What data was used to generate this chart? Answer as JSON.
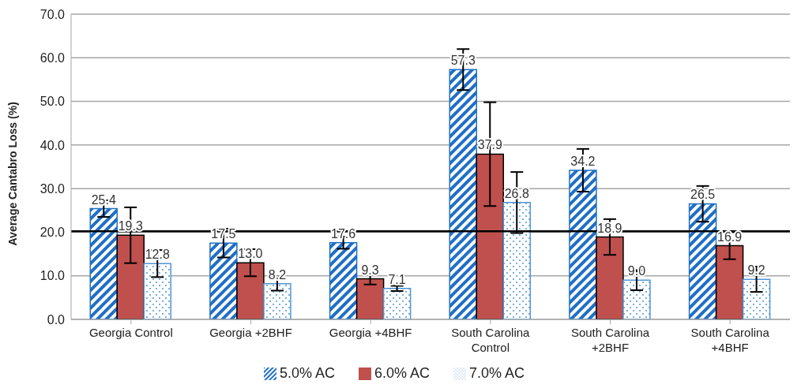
{
  "chart_data": {
    "type": "bar",
    "ylabel": "Average Cantabro Loss (%)",
    "categories": [
      "Georgia Control",
      "Georgia +2BHF",
      "Georgia +4BHF",
      "South Carolina Control",
      "South Carolina +2BHF",
      "South Carolina +4BHF"
    ],
    "series": [
      {
        "name": "5.0% AC",
        "color": "#1f6fc5",
        "values": [
          25.4,
          17.5,
          17.6,
          57.3,
          34.2,
          26.5
        ],
        "errors": [
          1.9,
          3.3,
          1.4,
          4.7,
          4.9,
          4.1
        ],
        "value_labels": [
          "25.4",
          "17.5",
          "17.6",
          "57.3",
          "34.2",
          "26.5"
        ]
      },
      {
        "name": "6.0% AC",
        "color": "#c0504d",
        "values": [
          19.3,
          13.0,
          9.3,
          37.9,
          18.9,
          16.9
        ],
        "errors": [
          6.4,
          3.1,
          1.3,
          11.9,
          4.1,
          3.1
        ],
        "value_labels": [
          "19.3",
          "13.0",
          "9.3",
          "37.9",
          "18.9",
          "16.9"
        ]
      },
      {
        "name": "7.0% AC",
        "color": "#4f95d6",
        "values": [
          12.8,
          8.2,
          7.1,
          26.8,
          9.0,
          9.2
        ],
        "errors": [
          3.1,
          1.6,
          0.6,
          7.0,
          2.3,
          2.9
        ],
        "value_labels": [
          "12.8",
          "8.2",
          "7.1",
          "26.8",
          "9.0",
          "9.2"
        ]
      }
    ],
    "ylim": [
      0,
      70
    ],
    "yticks": [
      {
        "value": 0,
        "label": "0.0"
      },
      {
        "value": 10,
        "label": "10.0"
      },
      {
        "value": 20,
        "label": "20.0"
      },
      {
        "value": 30,
        "label": "30.0"
      },
      {
        "value": 40,
        "label": "40.0"
      },
      {
        "value": 50,
        "label": "50.0"
      },
      {
        "value": 60,
        "label": "60.0"
      },
      {
        "value": 70,
        "label": "70.0"
      }
    ],
    "ref_lines": [
      {
        "axis": "y",
        "value": 20.2,
        "color": "#000000"
      }
    ],
    "grid": "y",
    "legend": "bottom"
  }
}
